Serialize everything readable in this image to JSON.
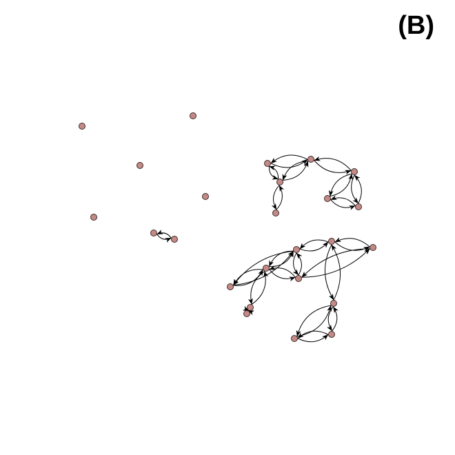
{
  "panel": {
    "label": "(B)"
  },
  "colors": {
    "node_fill": "#c48a86",
    "node_stroke": "#3a2a2a",
    "edge": "#000000"
  },
  "graph": {
    "directed": true,
    "nodes": [
      {
        "id": "i1"
      },
      {
        "id": "i2"
      },
      {
        "id": "i3"
      },
      {
        "id": "i4"
      },
      {
        "id": "i5"
      },
      {
        "id": "p1"
      },
      {
        "id": "p2"
      },
      {
        "id": "a1"
      },
      {
        "id": "a2"
      },
      {
        "id": "a3"
      },
      {
        "id": "a4"
      },
      {
        "id": "a5"
      },
      {
        "id": "a6"
      },
      {
        "id": "a7"
      },
      {
        "id": "b1"
      },
      {
        "id": "b2"
      },
      {
        "id": "b3"
      },
      {
        "id": "b4"
      },
      {
        "id": "b5"
      },
      {
        "id": "b6"
      },
      {
        "id": "b7"
      },
      {
        "id": "b8"
      },
      {
        "id": "b9"
      },
      {
        "id": "b10"
      },
      {
        "id": "b11"
      }
    ],
    "edges": [
      [
        "p1",
        "p2"
      ],
      [
        "p2",
        "p1"
      ],
      [
        "a1",
        "a2"
      ],
      [
        "a2",
        "a1"
      ],
      [
        "a1",
        "a3"
      ],
      [
        "a3",
        "a1"
      ],
      [
        "a2",
        "a3"
      ],
      [
        "a3",
        "a2"
      ],
      [
        "a3",
        "a4"
      ],
      [
        "a4",
        "a3"
      ],
      [
        "a2",
        "a5"
      ],
      [
        "a5",
        "a2"
      ],
      [
        "a5",
        "a6"
      ],
      [
        "a6",
        "a5"
      ],
      [
        "a5",
        "a7"
      ],
      [
        "a7",
        "a5"
      ],
      [
        "a6",
        "a7"
      ],
      [
        "a7",
        "a6"
      ],
      [
        "b1",
        "b2"
      ],
      [
        "b2",
        "b1"
      ],
      [
        "b1",
        "b3"
      ],
      [
        "b3",
        "b1"
      ],
      [
        "b2",
        "b3"
      ],
      [
        "b3",
        "b2"
      ],
      [
        "b2",
        "b4"
      ],
      [
        "b4",
        "b2"
      ],
      [
        "b4",
        "b5"
      ],
      [
        "b5",
        "b4"
      ],
      [
        "b3",
        "b6"
      ],
      [
        "b6",
        "b3"
      ],
      [
        "b6",
        "b7"
      ],
      [
        "b7",
        "b6"
      ],
      [
        "b7",
        "b8"
      ],
      [
        "b8",
        "b7"
      ],
      [
        "b6",
        "b9"
      ],
      [
        "b9",
        "b6"
      ],
      [
        "b9",
        "b10"
      ],
      [
        "b10",
        "b9"
      ],
      [
        "b9",
        "b11"
      ],
      [
        "b11",
        "b9"
      ],
      [
        "b10",
        "b11"
      ],
      [
        "b11",
        "b10"
      ]
    ]
  }
}
